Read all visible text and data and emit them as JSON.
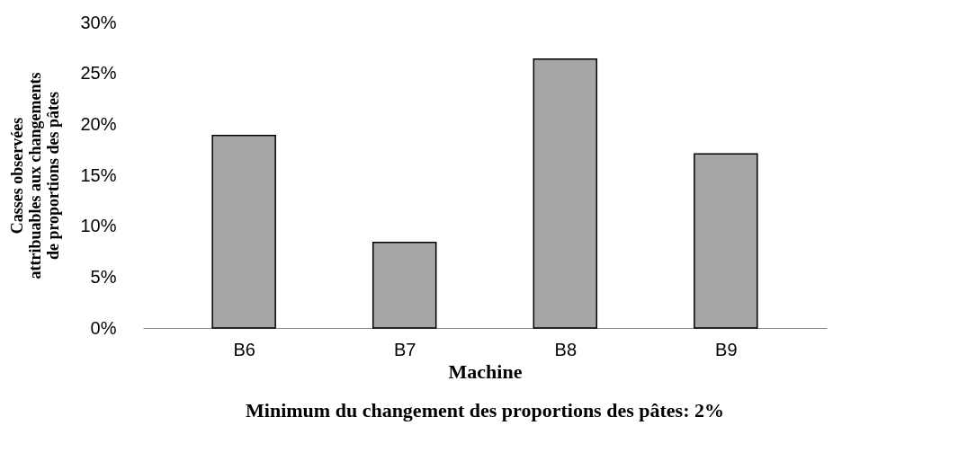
{
  "chart_data": {
    "type": "bar",
    "categories": [
      "B6",
      "B7",
      "B8",
      "B9"
    ],
    "values": [
      18.9,
      8.4,
      26.4,
      17.1
    ],
    "color": "#a6a6a6",
    "xlabel": "Machine",
    "ylabel": "Casses observées attribuables aux changements de proportions des pâtes",
    "ylim": [
      0,
      30
    ],
    "yticks": [
      {
        "value": 0,
        "label": "0%"
      },
      {
        "value": 5,
        "label": "5%"
      },
      {
        "value": 10,
        "label": "10%"
      },
      {
        "value": 15,
        "label": "15%"
      },
      {
        "value": 20,
        "label": "20%"
      },
      {
        "value": 25,
        "label": "25%"
      },
      {
        "value": 30,
        "label": "30%"
      }
    ],
    "annotations": [
      "Minimum du changement des proportions des pâtes: 2%"
    ],
    "grid": false
  }
}
